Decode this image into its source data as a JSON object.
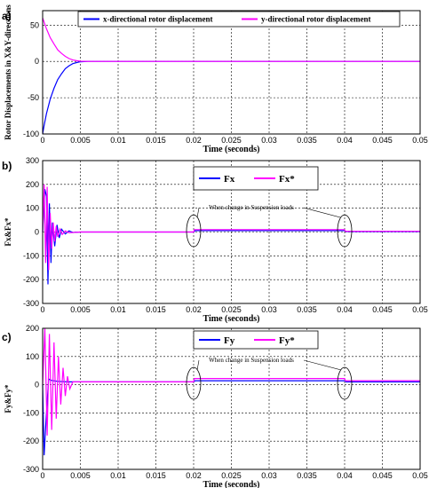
{
  "chart_data": [
    {
      "panel": "a)",
      "type": "line",
      "xlabel": "Time (seconds)",
      "ylabel": "Rotor Displacements in X&Y-directions",
      "xlim": [
        0,
        0.05
      ],
      "ylim": [
        -100,
        70
      ],
      "xticks": [
        "0",
        "0.005",
        "0.01",
        "0.015",
        "0.02",
        "0.025",
        "0.03",
        "0.035",
        "0.04",
        "0.045",
        "0.05"
      ],
      "yticks": [
        "50",
        "0",
        "-50",
        "-100"
      ],
      "grid": true,
      "legend_position": "top",
      "series": [
        {
          "name": "x-directional rotor displacement",
          "color": "#0000ff",
          "x": [
            0,
            0.0002,
            0.0005,
            0.001,
            0.0015,
            0.002,
            0.0025,
            0.003,
            0.0035,
            0.004,
            0.0045,
            0.005,
            0.006,
            0.05
          ],
          "y": [
            -100,
            -88,
            -72,
            -52,
            -37,
            -25,
            -17,
            -10,
            -6,
            -3,
            -1.5,
            -0.5,
            0,
            0
          ]
        },
        {
          "name": "y-directional rotor displacement",
          "color": "#ff00ff",
          "x": [
            0,
            0.0002,
            0.0005,
            0.001,
            0.0015,
            0.002,
            0.0025,
            0.003,
            0.0035,
            0.004,
            0.0045,
            0.005,
            0.006,
            0.05
          ],
          "y": [
            60,
            54,
            45,
            33,
            24,
            16,
            11,
            7,
            4,
            2,
            1,
            0.3,
            0,
            0
          ]
        }
      ],
      "annotations": []
    },
    {
      "panel": "b)",
      "type": "line",
      "xlabel": "Time (seconds)",
      "ylabel": "Fx&Fx*",
      "xlim": [
        0,
        0.05
      ],
      "ylim": [
        -300,
        300
      ],
      "xticks": [
        "0",
        "0.005",
        "0.01",
        "0.015",
        "0.02",
        "0.025",
        "0.03",
        "0.035",
        "0.04",
        "0.045",
        "0.05"
      ],
      "yticks": [
        "300",
        "200",
        "100",
        "0",
        "-100",
        "-200",
        "-300"
      ],
      "grid": true,
      "legend_position": "top-center",
      "series": [
        {
          "name": "Fx",
          "color": "#0000ff",
          "x": [
            0,
            0.0003,
            0.0005,
            0.0007,
            0.0009,
            0.0011,
            0.0013,
            0.0016,
            0.0019,
            0.0022,
            0.0025,
            0.003,
            0.0035,
            0.004,
            0.005,
            0.02,
            0.0202,
            0.04,
            0.0402,
            0.05
          ],
          "y": [
            0,
            180,
            150,
            -220,
            120,
            -130,
            40,
            -60,
            30,
            -25,
            12,
            -8,
            5,
            -2,
            0,
            0,
            6,
            6,
            2,
            2
          ]
        },
        {
          "name": "Fx*",
          "color": "#ff00ff",
          "x": [
            0,
            0.0002,
            0.0004,
            0.0006,
            0.0008,
            0.001,
            0.0012,
            0.0014,
            0.0016,
            0.0018,
            0.002,
            0.0023,
            0.0026,
            0.003,
            0.0035,
            0.005,
            0.02,
            0.0201,
            0.04,
            0.0401,
            0.05
          ],
          "y": [
            0,
            200,
            -130,
            190,
            -160,
            80,
            -70,
            40,
            -40,
            25,
            -20,
            12,
            -10,
            5,
            -3,
            0,
            0,
            10,
            10,
            3,
            3
          ]
        }
      ],
      "annotations": [
        {
          "text": "When change in Suspension loads",
          "ellipses_at_x": [
            0.02,
            0.04
          ]
        }
      ]
    },
    {
      "panel": "c)",
      "type": "line",
      "xlabel": "Time (seconds)",
      "ylabel": "Fy&Fy*",
      "xlim": [
        0,
        0.05
      ],
      "ylim": [
        -300,
        200
      ],
      "xticks": [
        "0",
        "0.005",
        "0.01",
        "0.015",
        "0.02",
        "0.025",
        "0.03",
        "0.035",
        "0.04",
        "0.045",
        "0.05"
      ],
      "yticks": [
        "200",
        "100",
        "0",
        "-100",
        "-200",
        "-300"
      ],
      "grid": true,
      "legend_position": "top-center",
      "series": [
        {
          "name": "Fy",
          "color": "#0000ff",
          "x": [
            0,
            0.0002,
            0.0004,
            0.0006,
            0.0008,
            0.0012,
            0.002,
            0.0035,
            0.005,
            0.02,
            0.0202,
            0.04,
            0.0402,
            0.05
          ],
          "y": [
            0,
            -250,
            -150,
            -60,
            20,
            15,
            12,
            10,
            10,
            10,
            14,
            14,
            10,
            10
          ]
        },
        {
          "name": "Fy*",
          "color": "#ff00ff",
          "x": [
            0,
            0.0003,
            0.0006,
            0.0009,
            0.0012,
            0.0015,
            0.0018,
            0.0021,
            0.0024,
            0.0027,
            0.003,
            0.0033,
            0.0036,
            0.004,
            0.005,
            0.02,
            0.0201,
            0.04,
            0.0401,
            0.05
          ],
          "y": [
            0,
            200,
            -180,
            180,
            -160,
            150,
            -120,
            100,
            -70,
            60,
            -40,
            30,
            -15,
            10,
            10,
            10,
            22,
            22,
            14,
            14
          ]
        }
      ],
      "annotations": [
        {
          "text": "When change in Suspension loads",
          "ellipses_at_x": [
            0.02,
            0.04
          ]
        }
      ]
    }
  ]
}
